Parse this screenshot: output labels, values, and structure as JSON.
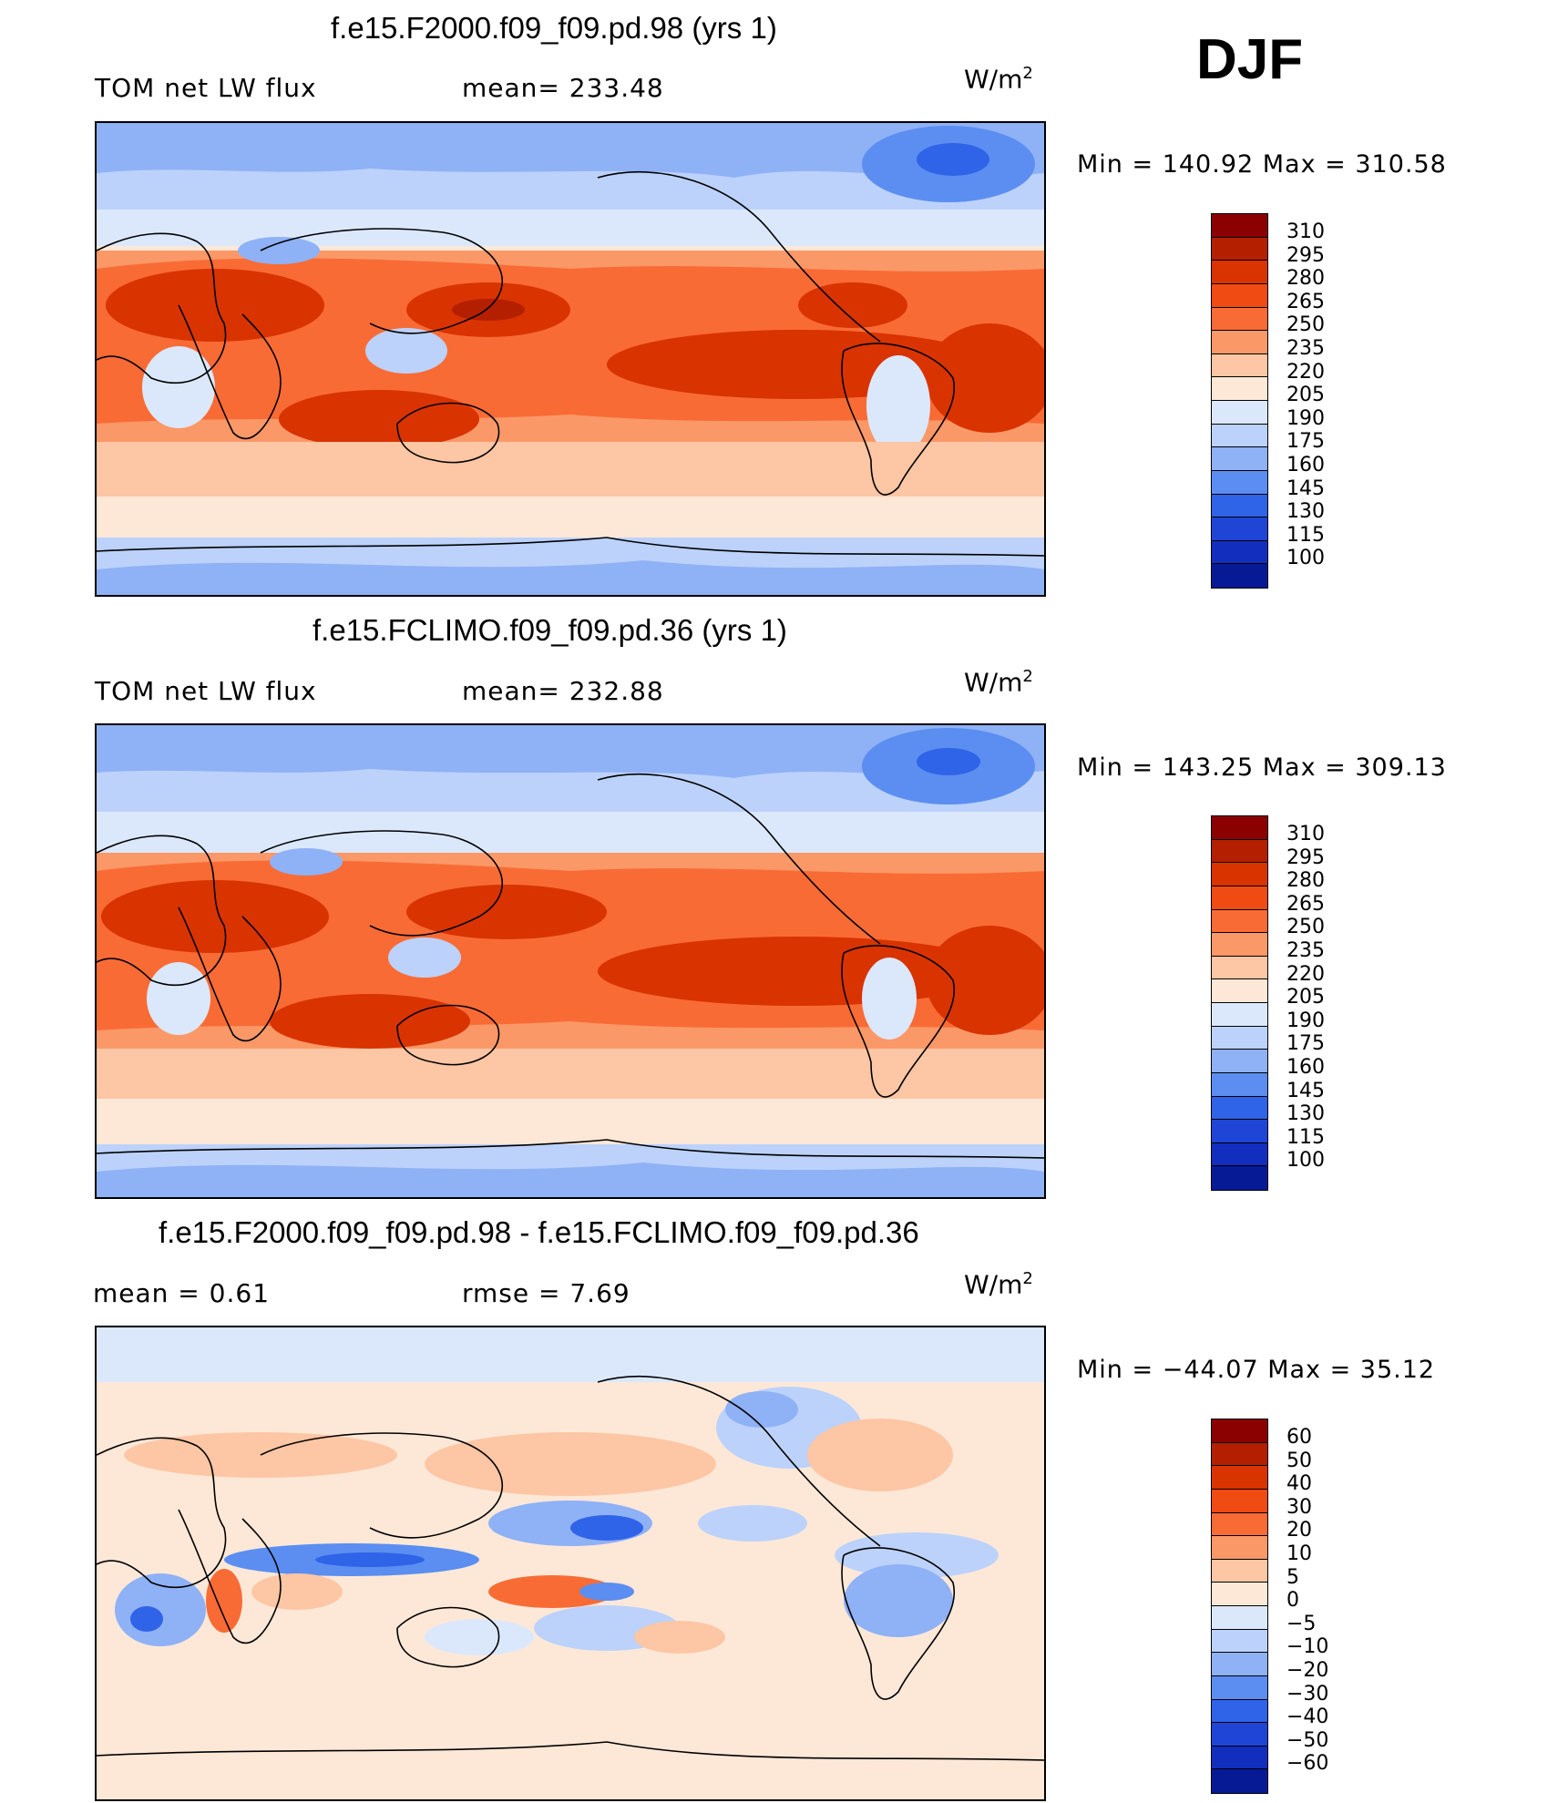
{
  "season": "DJF",
  "panels": [
    {
      "title": "f.e15.F2000.f09_f09.pd.98 (yrs 1)",
      "left_label": "TOM net LW flux",
      "center_label": "mean=  233.48",
      "units_base": "W/m",
      "units_exp": "2",
      "minmax": "Min  =  140.92  Max  =  310.58",
      "colorbar": {
        "levels": [
          "310",
          "295",
          "280",
          "265",
          "250",
          "235",
          "220",
          "205",
          "190",
          "175",
          "160",
          "145",
          "130",
          "115",
          "100"
        ],
        "colors": [
          "#8b0000",
          "#b41f00",
          "#d93300",
          "#f04b12",
          "#f96b35",
          "#fb9868",
          "#fdc6a4",
          "#fde8d8",
          "#dbe8fc",
          "#bcd2fb",
          "#8fb1f6",
          "#5b8ef0",
          "#2f63e8",
          "#1f45d6",
          "#122ebe",
          "#071a96"
        ]
      }
    },
    {
      "title": "f.e15.FCLIMO.f09_f09.pd.36 (yrs 1)",
      "left_label": "TOM net LW flux",
      "center_label": "mean=  232.88",
      "units_base": "W/m",
      "units_exp": "2",
      "minmax": "Min  =  143.25  Max  =  309.13",
      "colorbar": {
        "levels": [
          "310",
          "295",
          "280",
          "265",
          "250",
          "235",
          "220",
          "205",
          "190",
          "175",
          "160",
          "145",
          "130",
          "115",
          "100"
        ],
        "colors": [
          "#8b0000",
          "#b41f00",
          "#d93300",
          "#f04b12",
          "#f96b35",
          "#fb9868",
          "#fdc6a4",
          "#fde8d8",
          "#dbe8fc",
          "#bcd2fb",
          "#8fb1f6",
          "#5b8ef0",
          "#2f63e8",
          "#1f45d6",
          "#122ebe",
          "#071a96"
        ]
      }
    },
    {
      "title": "f.e15.F2000.f09_f09.pd.98 - f.e15.FCLIMO.f09_f09.pd.36",
      "left_label": "mean  =      0.61",
      "center_label": "rmse  =      7.69",
      "units_base": "W/m",
      "units_exp": "2",
      "minmax": "Min  =  −44.07  Max  =    35.12",
      "colorbar": {
        "levels": [
          "60",
          "50",
          "40",
          "30",
          "20",
          "10",
          "5",
          "0",
          "−5",
          "−10",
          "−20",
          "−30",
          "−40",
          "−50",
          "−60"
        ],
        "colors": [
          "#8b0000",
          "#b41f00",
          "#d93300",
          "#f04b12",
          "#f96b35",
          "#fb9868",
          "#fdc6a4",
          "#fde8d8",
          "#dbe8fc",
          "#bcd2fb",
          "#8fb1f6",
          "#5b8ef0",
          "#2f63e8",
          "#1f45d6",
          "#122ebe",
          "#071a96"
        ]
      }
    }
  ]
}
